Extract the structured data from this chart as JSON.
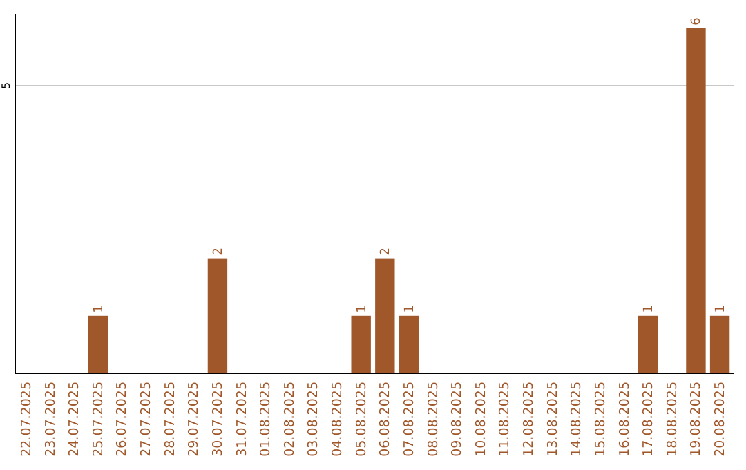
{
  "chart_data": {
    "type": "bar",
    "categories": [
      "22.07.2025",
      "23.07.2025",
      "24.07.2025",
      "25.07.2025",
      "26.07.2025",
      "27.07.2025",
      "28.07.2025",
      "29.07.2025",
      "30.07.2025",
      "31.07.2025",
      "01.08.2025",
      "02.08.2025",
      "03.08.2025",
      "04.08.2025",
      "05.08.2025",
      "06.08.2025",
      "07.08.2025",
      "08.08.2025",
      "09.08.2025",
      "10.08.2025",
      "11.08.2025",
      "12.08.2025",
      "13.08.2025",
      "14.08.2025",
      "15.08.2025",
      "16.08.2025",
      "17.08.2025",
      "18.08.2025",
      "19.08.2025",
      "20.08.2025"
    ],
    "values": [
      0,
      0,
      0,
      1,
      0,
      0,
      0,
      0,
      2,
      0,
      0,
      0,
      0,
      0,
      1,
      2,
      1,
      0,
      0,
      0,
      0,
      0,
      0,
      0,
      0,
      0,
      1,
      0,
      6,
      1
    ],
    "value_labels": [
      null,
      null,
      null,
      "1",
      null,
      null,
      null,
      null,
      "2",
      null,
      null,
      null,
      null,
      null,
      "1",
      "2",
      "1",
      null,
      null,
      null,
      null,
      null,
      null,
      null,
      null,
      null,
      "1",
      null,
      "6",
      "1"
    ],
    "color": "#a0572a",
    "ylim": [
      0,
      6.25
    ],
    "yticks": [
      5
    ],
    "grid": "y"
  }
}
